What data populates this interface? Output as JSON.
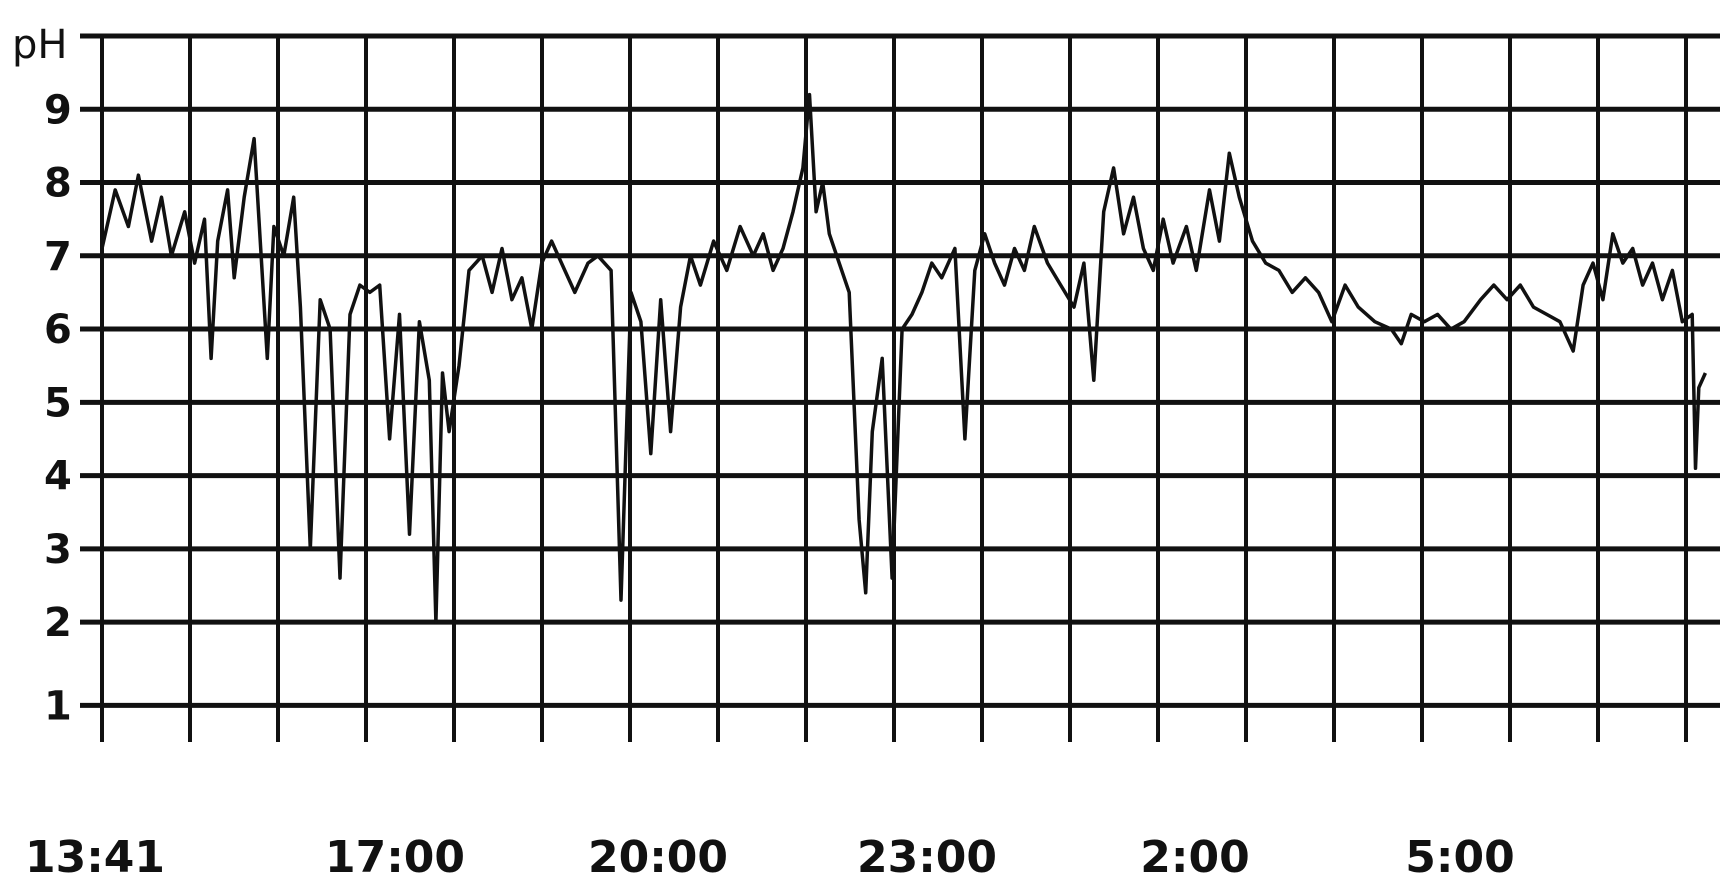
{
  "chart_data": {
    "type": "line",
    "title": "",
    "xlabel": "",
    "ylabel": "pH",
    "ylim": [
      0.5,
      10.0
    ],
    "y_ticks": [
      "1",
      "2",
      "3",
      "4",
      "5",
      "6",
      "7",
      "8",
      "9"
    ],
    "x_ticks": [
      "13:41",
      "17:00",
      "20:00",
      "23:00",
      "2:00",
      "5:00"
    ],
    "grid": true,
    "series": [
      {
        "points": [
          [
            0.0,
            7.1
          ],
          [
            0.08,
            7.9
          ],
          [
            0.16,
            7.4
          ],
          [
            0.22,
            8.1
          ],
          [
            0.3,
            7.2
          ],
          [
            0.36,
            7.8
          ],
          [
            0.42,
            7.0
          ],
          [
            0.5,
            7.6
          ],
          [
            0.56,
            6.9
          ],
          [
            0.62,
            7.5
          ],
          [
            0.66,
            5.6
          ],
          [
            0.7,
            7.2
          ],
          [
            0.76,
            7.9
          ],
          [
            0.8,
            6.7
          ],
          [
            0.86,
            7.8
          ],
          [
            0.92,
            8.6
          ],
          [
            0.96,
            7.1
          ],
          [
            1.0,
            5.6
          ],
          [
            1.04,
            7.4
          ],
          [
            1.1,
            7.0
          ],
          [
            1.16,
            7.8
          ],
          [
            1.2,
            6.3
          ],
          [
            1.26,
            3.0
          ],
          [
            1.32,
            6.4
          ],
          [
            1.38,
            6.0
          ],
          [
            1.44,
            2.6
          ],
          [
            1.5,
            6.2
          ],
          [
            1.56,
            6.6
          ],
          [
            1.62,
            6.5
          ],
          [
            1.68,
            6.6
          ],
          [
            1.74,
            4.5
          ],
          [
            1.8,
            6.2
          ],
          [
            1.86,
            3.2
          ],
          [
            1.92,
            6.1
          ],
          [
            1.98,
            5.3
          ],
          [
            2.02,
            2.0
          ],
          [
            2.06,
            5.4
          ],
          [
            2.1,
            4.6
          ],
          [
            2.16,
            5.5
          ],
          [
            2.22,
            6.8
          ],
          [
            2.3,
            7.0
          ],
          [
            2.36,
            6.5
          ],
          [
            2.42,
            7.1
          ],
          [
            2.48,
            6.4
          ],
          [
            2.54,
            6.7
          ],
          [
            2.6,
            6.0
          ],
          [
            2.66,
            6.9
          ],
          [
            2.72,
            7.2
          ],
          [
            2.8,
            6.8
          ],
          [
            2.86,
            6.5
          ],
          [
            2.94,
            6.9
          ],
          [
            3.0,
            7.0
          ],
          [
            3.08,
            6.8
          ],
          [
            3.14,
            2.3
          ],
          [
            3.2,
            6.5
          ],
          [
            3.26,
            6.1
          ],
          [
            3.32,
            4.3
          ],
          [
            3.38,
            6.4
          ],
          [
            3.44,
            4.6
          ],
          [
            3.5,
            6.3
          ],
          [
            3.56,
            7.0
          ],
          [
            3.62,
            6.6
          ],
          [
            3.7,
            7.2
          ],
          [
            3.78,
            6.8
          ],
          [
            3.86,
            7.4
          ],
          [
            3.94,
            7.0
          ],
          [
            4.0,
            7.3
          ],
          [
            4.06,
            6.8
          ],
          [
            4.12,
            7.1
          ],
          [
            4.18,
            7.6
          ],
          [
            4.24,
            8.2
          ],
          [
            4.28,
            9.2
          ],
          [
            4.32,
            7.6
          ],
          [
            4.36,
            8.0
          ],
          [
            4.4,
            7.3
          ],
          [
            4.46,
            6.9
          ],
          [
            4.52,
            6.5
          ],
          [
            4.58,
            3.4
          ],
          [
            4.62,
            2.4
          ],
          [
            4.66,
            4.6
          ],
          [
            4.72,
            5.6
          ],
          [
            4.78,
            2.6
          ],
          [
            4.84,
            6.0
          ],
          [
            4.9,
            6.2
          ],
          [
            4.96,
            6.5
          ],
          [
            5.02,
            6.9
          ],
          [
            5.08,
            6.7
          ],
          [
            5.16,
            7.1
          ],
          [
            5.22,
            4.5
          ],
          [
            5.28,
            6.8
          ],
          [
            5.34,
            7.3
          ],
          [
            5.4,
            6.9
          ],
          [
            5.46,
            6.6
          ],
          [
            5.52,
            7.1
          ],
          [
            5.58,
            6.8
          ],
          [
            5.64,
            7.4
          ],
          [
            5.72,
            6.9
          ],
          [
            5.8,
            6.6
          ],
          [
            5.88,
            6.3
          ],
          [
            5.94,
            6.9
          ],
          [
            6.0,
            5.3
          ],
          [
            6.06,
            7.6
          ],
          [
            6.12,
            8.2
          ],
          [
            6.18,
            7.3
          ],
          [
            6.24,
            7.8
          ],
          [
            6.3,
            7.1
          ],
          [
            6.36,
            6.8
          ],
          [
            6.42,
            7.5
          ],
          [
            6.48,
            6.9
          ],
          [
            6.56,
            7.4
          ],
          [
            6.62,
            6.8
          ],
          [
            6.7,
            7.9
          ],
          [
            6.76,
            7.2
          ],
          [
            6.82,
            8.4
          ],
          [
            6.88,
            7.8
          ],
          [
            6.96,
            7.2
          ],
          [
            7.04,
            6.9
          ],
          [
            7.12,
            6.8
          ],
          [
            7.2,
            6.5
          ],
          [
            7.28,
            6.7
          ],
          [
            7.36,
            6.5
          ],
          [
            7.44,
            6.1
          ],
          [
            7.52,
            6.6
          ],
          [
            7.6,
            6.3
          ],
          [
            7.7,
            6.1
          ],
          [
            7.8,
            6.0
          ],
          [
            7.86,
            5.8
          ],
          [
            7.92,
            6.2
          ],
          [
            8.0,
            6.1
          ],
          [
            8.08,
            6.2
          ],
          [
            8.16,
            6.0
          ],
          [
            8.24,
            6.1
          ],
          [
            8.34,
            6.4
          ],
          [
            8.42,
            6.6
          ],
          [
            8.5,
            6.4
          ],
          [
            8.58,
            6.6
          ],
          [
            8.66,
            6.3
          ],
          [
            8.74,
            6.2
          ],
          [
            8.82,
            6.1
          ],
          [
            8.9,
            5.7
          ],
          [
            8.96,
            6.6
          ],
          [
            9.02,
            6.9
          ],
          [
            9.08,
            6.4
          ],
          [
            9.14,
            7.3
          ],
          [
            9.2,
            6.9
          ],
          [
            9.26,
            7.1
          ],
          [
            9.32,
            6.6
          ],
          [
            9.38,
            6.9
          ],
          [
            9.44,
            6.4
          ],
          [
            9.5,
            6.8
          ],
          [
            9.56,
            6.1
          ],
          [
            9.62,
            6.2
          ],
          [
            9.64,
            4.1
          ],
          [
            9.66,
            5.2
          ],
          [
            9.7,
            5.4
          ]
        ]
      }
    ]
  }
}
